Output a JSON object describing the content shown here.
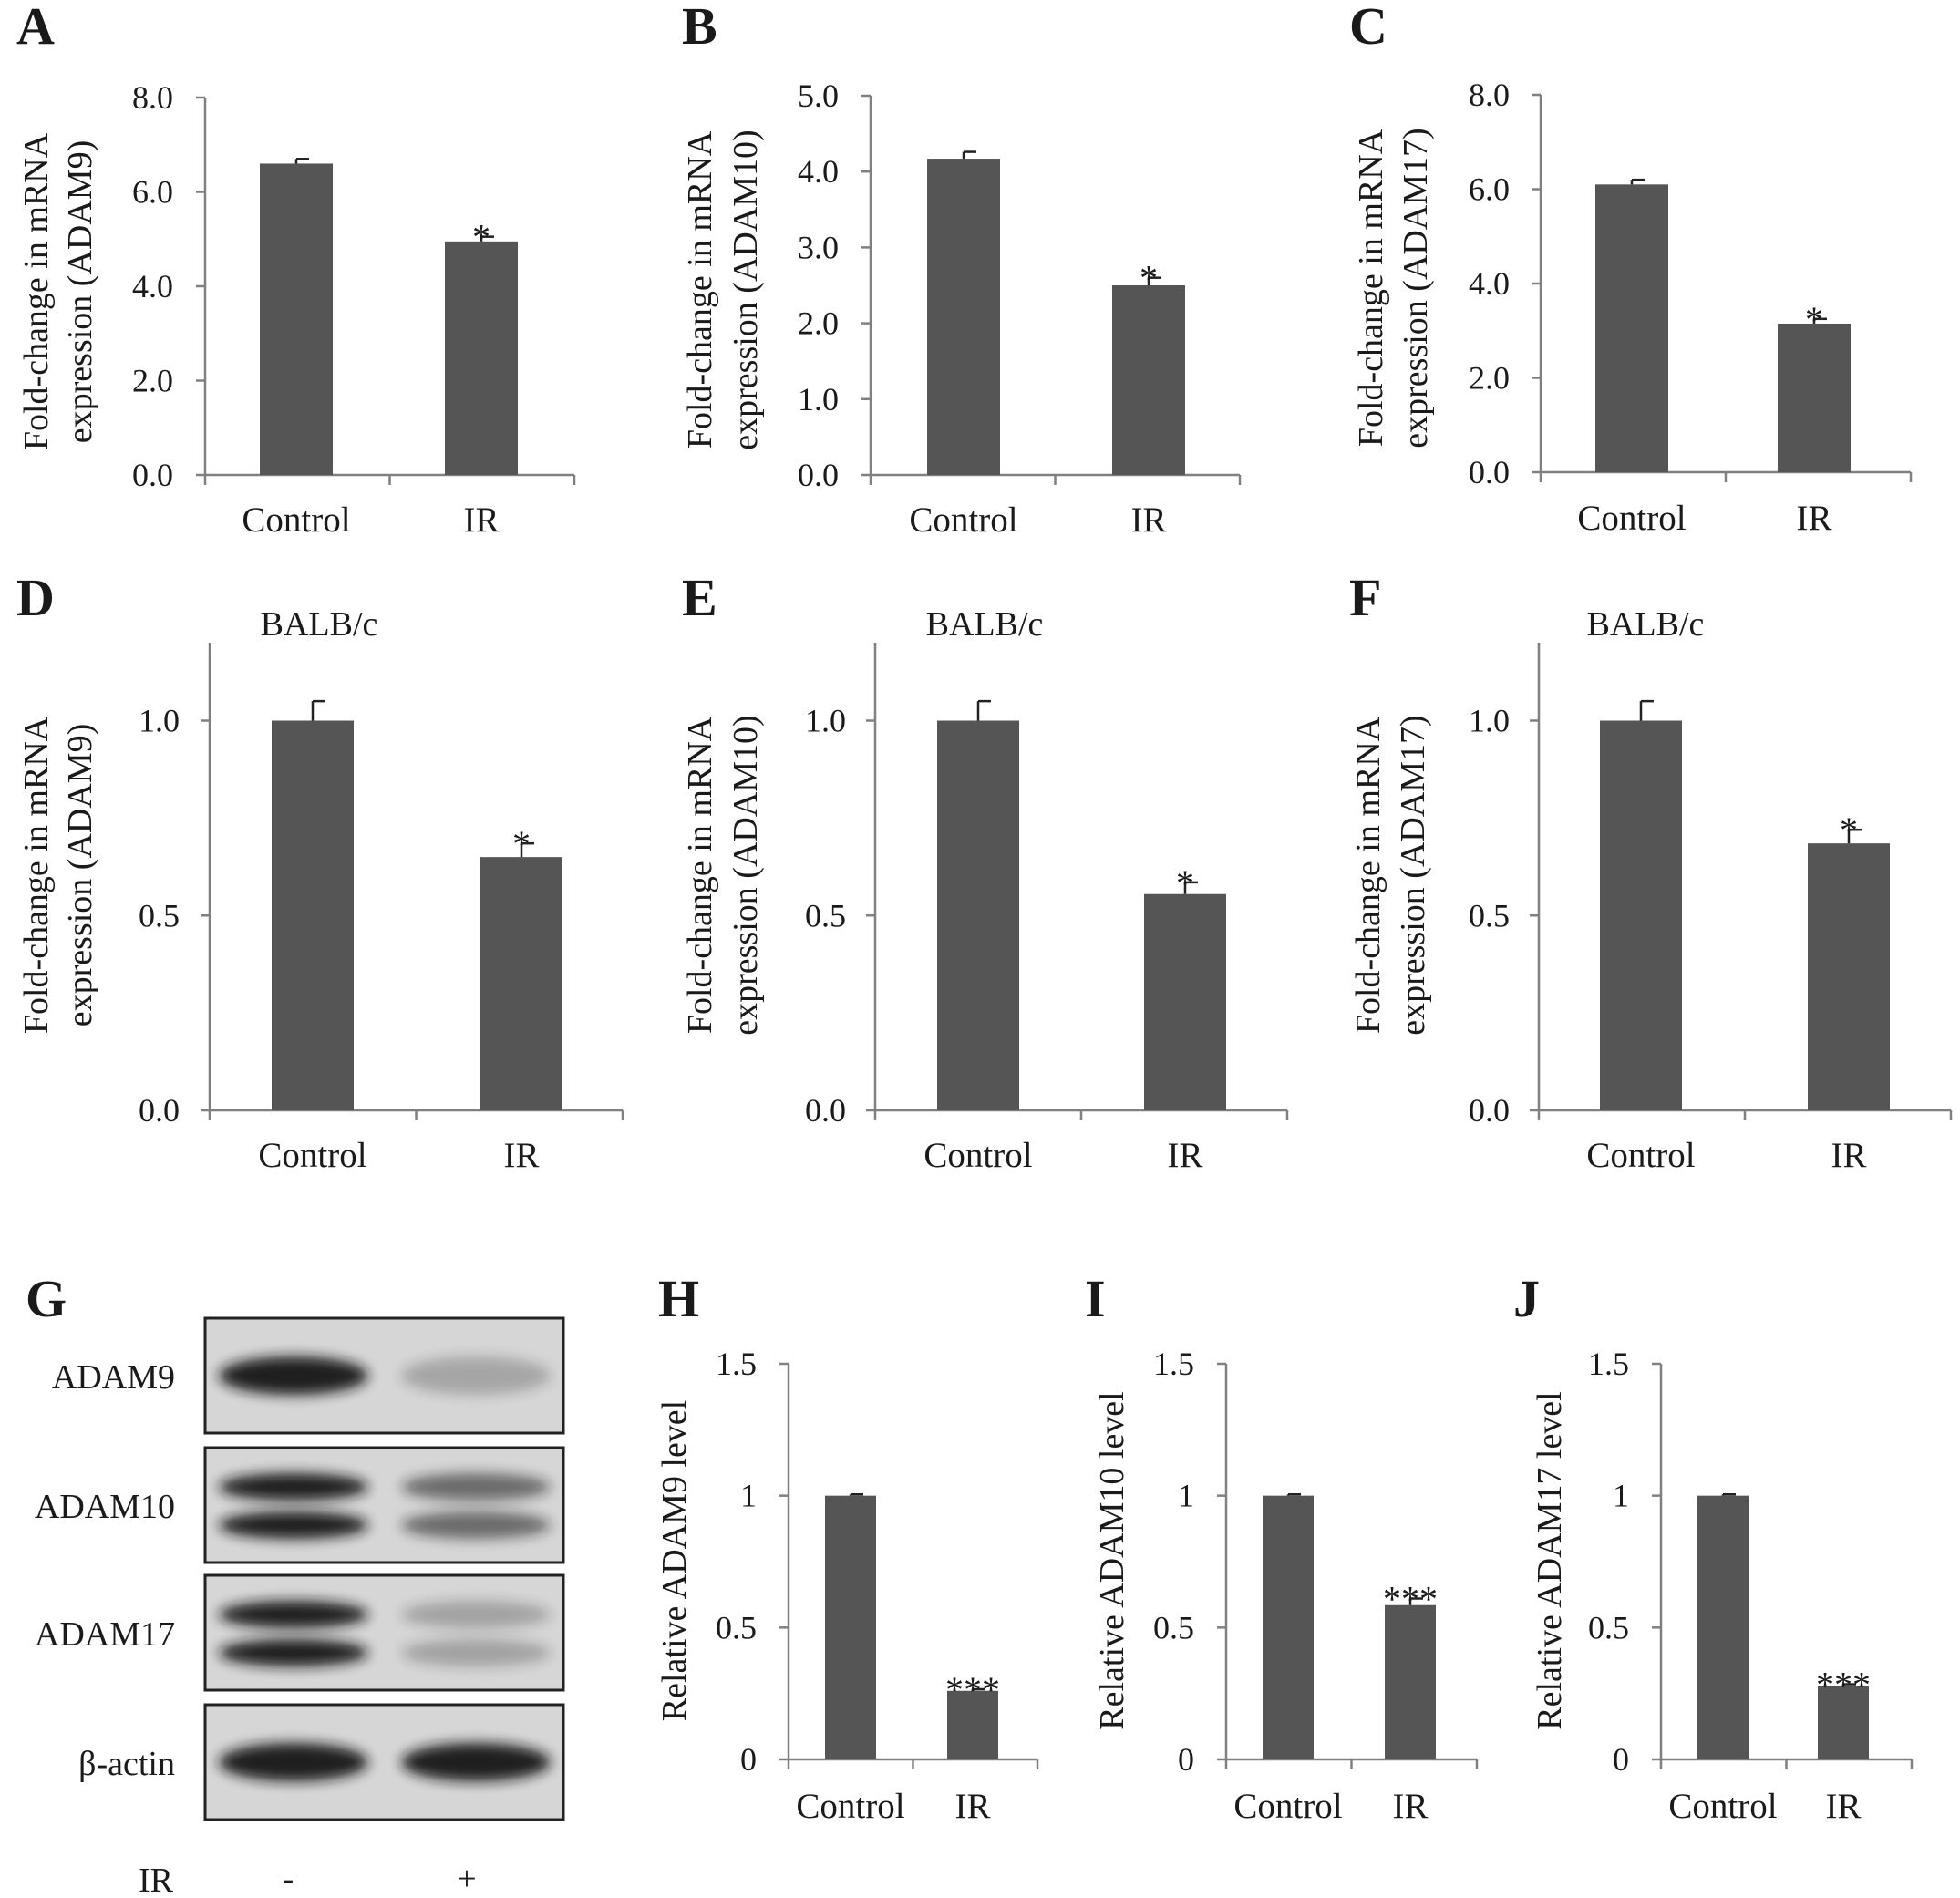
{
  "colors": {
    "bar": "#555555",
    "axis": "#808080",
    "text": "#1a1a1a",
    "blot_bg": "#d6d6d6",
    "band": "#141414"
  },
  "chart_data": [
    {
      "panel": "A",
      "type": "bar",
      "subtitle": "",
      "ylabel": [
        "Fold-change in mRNA",
        "expression (ADAM9)"
      ],
      "categories": [
        "Control",
        "IR"
      ],
      "values": [
        6.6,
        4.95
      ],
      "errors": [
        0.1,
        0.1
      ],
      "significance": [
        "",
        "*"
      ],
      "ylim": [
        0,
        8
      ],
      "yticks": [
        "0.0",
        "2.0",
        "4.0",
        "6.0",
        "8.0"
      ],
      "grid": false
    },
    {
      "panel": "B",
      "type": "bar",
      "subtitle": "",
      "ylabel": [
        "Fold-change in mRNA",
        "expression (ADAM10)"
      ],
      "categories": [
        "Control",
        "IR"
      ],
      "values": [
        4.17,
        2.5
      ],
      "errors": [
        0.09,
        0.1
      ],
      "significance": [
        "",
        "*"
      ],
      "ylim": [
        0,
        5
      ],
      "yticks": [
        "0.0",
        "1.0",
        "2.0",
        "3.0",
        "4.0",
        "5.0"
      ],
      "grid": false
    },
    {
      "panel": "C",
      "type": "bar",
      "subtitle": "",
      "ylabel": [
        "Fold-change in mRNA",
        "expression (ADAM17)"
      ],
      "categories": [
        "Control",
        "IR"
      ],
      "values": [
        6.1,
        3.15
      ],
      "errors": [
        0.1,
        0.1
      ],
      "significance": [
        "",
        "*"
      ],
      "ylim": [
        0,
        8
      ],
      "yticks": [
        "0.0",
        "2.0",
        "4.0",
        "6.0",
        "8.0"
      ],
      "grid": false
    },
    {
      "panel": "D",
      "type": "bar",
      "subtitle": "BALB/c",
      "ylabel": [
        "Fold-change in mRNA",
        "expression (ADAM9)"
      ],
      "categories": [
        "Control",
        "IR"
      ],
      "values": [
        1.0,
        0.65
      ],
      "errors": [
        0.05,
        0.035
      ],
      "significance": [
        "",
        "*"
      ],
      "ylim": [
        0,
        1.2
      ],
      "yticks": [
        "0.0",
        "0.5",
        "1.0"
      ],
      "grid": false
    },
    {
      "panel": "E",
      "type": "bar",
      "subtitle": "BALB/c",
      "ylabel": [
        "Fold-change in mRNA",
        "expression (ADAM10)"
      ],
      "categories": [
        "Control",
        "IR"
      ],
      "values": [
        1.0,
        0.555
      ],
      "errors": [
        0.05,
        0.03
      ],
      "significance": [
        "",
        "*"
      ],
      "ylim": [
        0,
        1.2
      ],
      "yticks": [
        "0.0",
        "0.5",
        "1.0"
      ],
      "grid": false
    },
    {
      "panel": "F",
      "type": "bar",
      "subtitle": "BALB/c",
      "ylabel": [
        "Fold-change in mRNA",
        "expression (ADAM17)"
      ],
      "categories": [
        "Control",
        "IR"
      ],
      "values": [
        1.0,
        0.685
      ],
      "errors": [
        0.05,
        0.035
      ],
      "significance": [
        "",
        "*"
      ],
      "ylim": [
        0,
        1.2
      ],
      "yticks": [
        "0.0",
        "0.5",
        "1.0"
      ],
      "grid": false
    },
    {
      "panel": "H",
      "type": "bar",
      "subtitle": "",
      "ylabel": [
        "Relative ADAM9 level"
      ],
      "categories": [
        "Control",
        "IR"
      ],
      "values": [
        1.0,
        0.26
      ],
      "errors": [
        0.005,
        0.006
      ],
      "significance": [
        "",
        "***"
      ],
      "ylim": [
        0,
        1.5
      ],
      "yticks": [
        "0",
        "0.5",
        "1",
        "1.5"
      ],
      "grid": false
    },
    {
      "panel": "I",
      "type": "bar",
      "subtitle": "",
      "ylabel": [
        "Relative ADAM10 level"
      ],
      "categories": [
        "Control",
        "IR"
      ],
      "values": [
        1.0,
        0.585
      ],
      "errors": [
        0.005,
        0.025
      ],
      "significance": [
        "",
        "***"
      ],
      "ylim": [
        0,
        1.5
      ],
      "yticks": [
        "0",
        "0.5",
        "1",
        "1.5"
      ],
      "grid": false
    },
    {
      "panel": "J",
      "type": "bar",
      "subtitle": "",
      "ylabel": [
        "Relative ADAM17 level"
      ],
      "categories": [
        "Control",
        "IR"
      ],
      "values": [
        1.0,
        0.28
      ],
      "errors": [
        0.005,
        0.005
      ],
      "significance": [
        "",
        "***"
      ],
      "ylim": [
        0,
        1.5
      ],
      "yticks": [
        "0",
        "0.5",
        "1",
        "1.5"
      ],
      "grid": false
    }
  ],
  "western_blot": {
    "panel": "G",
    "rows": [
      {
        "label": "ADAM9",
        "intensity": [
          1.0,
          0.26
        ],
        "band_count": 1
      },
      {
        "label": "ADAM10",
        "intensity": [
          1.0,
          0.585
        ],
        "band_count": 2
      },
      {
        "label": "ADAM17",
        "intensity": [
          1.0,
          0.28
        ],
        "band_count": 2
      },
      {
        "label": "β-actin",
        "intensity": [
          1.0,
          1.0
        ],
        "band_count": 1
      }
    ],
    "condition_label": "IR",
    "lanes": [
      "-",
      "+"
    ]
  }
}
